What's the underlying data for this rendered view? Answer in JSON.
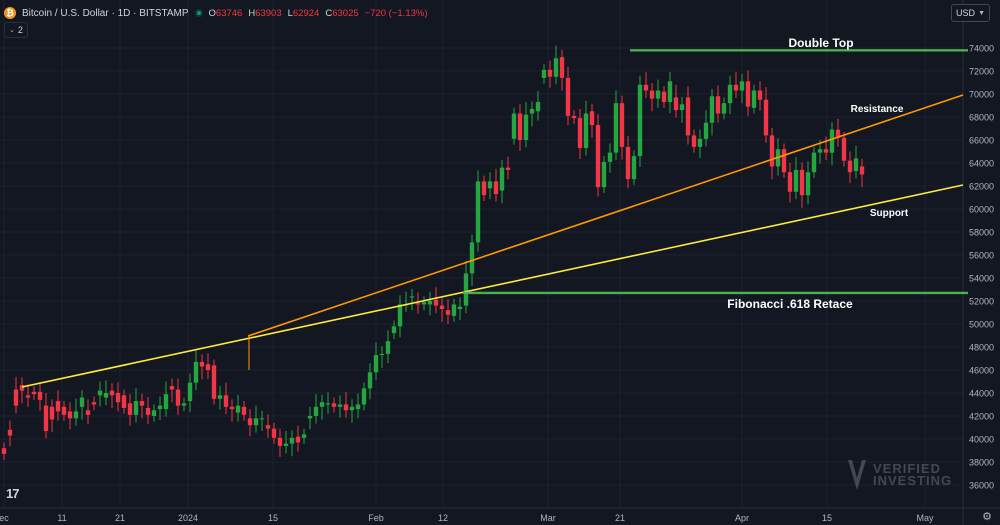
{
  "header": {
    "title": "Bitcoin / U.S. Dollar · 1D · BITSTAMP",
    "ohlc": [
      {
        "label": "O",
        "value": "63746"
      },
      {
        "label": "H",
        "value": "63903"
      },
      {
        "label": "L",
        "value": "62924"
      },
      {
        "label": "C",
        "value": "63025"
      }
    ],
    "change": "−720 (−1.13%)"
  },
  "indicators": {
    "count": "2"
  },
  "currency": {
    "label": "USD"
  },
  "watermark": {
    "line1": "VERIFIED",
    "line2": "INVESTING"
  },
  "colors": {
    "background": "#131722",
    "up": "#26a641",
    "down": "#f23645",
    "fib": "#4caf50",
    "support": "#ffeb3b",
    "resistance": "#ff9800",
    "grid": "#1e222d"
  },
  "chart_data": {
    "type": "candlestick",
    "ylim": [
      35000,
      75500
    ],
    "y_ticks": [
      36000,
      38000,
      40000,
      42000,
      44000,
      46000,
      48000,
      50000,
      52000,
      54000,
      56000,
      58000,
      60000,
      62000,
      64000,
      66000,
      68000,
      70000,
      72000,
      74000
    ],
    "x_labels": [
      "ec",
      "11",
      "21",
      "2024",
      "15",
      "Feb",
      "12",
      "Mar",
      "21",
      "Apr",
      "15",
      "May"
    ],
    "candles": [
      [
        39200,
        38700
      ],
      [
        40800,
        40300
      ],
      [
        44300,
        42900
      ],
      [
        44700,
        44200
      ],
      [
        43800,
        43600
      ],
      [
        44100,
        43900
      ],
      [
        44100,
        43400
      ],
      [
        42900,
        40700
      ],
      [
        42800,
        41700
      ],
      [
        43300,
        42400
      ],
      [
        42800,
        42100
      ],
      [
        42400,
        41800
      ],
      [
        41800,
        42400
      ],
      [
        42800,
        43600
      ],
      [
        42500,
        42100
      ],
      [
        43200,
        43000
      ],
      [
        43800,
        44200
      ],
      [
        43600,
        44000
      ],
      [
        44200,
        43800
      ],
      [
        44000,
        43200
      ],
      [
        43800,
        42700
      ],
      [
        43100,
        42100
      ],
      [
        42100,
        43300
      ],
      [
        43300,
        42900
      ],
      [
        42700,
        42100
      ],
      [
        42000,
        42500
      ],
      [
        42600,
        42900
      ],
      [
        42600,
        43900
      ],
      [
        44600,
        44300
      ],
      [
        44300,
        42900
      ],
      [
        42900,
        43100
      ],
      [
        43300,
        44900
      ],
      [
        44900,
        46700
      ],
      [
        46700,
        46300
      ],
      [
        46500,
        46000
      ],
      [
        46400,
        43500
      ],
      [
        43500,
        43800
      ],
      [
        43800,
        42800
      ],
      [
        42800,
        42600
      ],
      [
        42300,
        42900
      ],
      [
        42800,
        42100
      ],
      [
        41800,
        41200
      ],
      [
        41200,
        41800
      ],
      [
        41800,
        41800
      ],
      [
        41200,
        40900
      ],
      [
        40900,
        40100
      ],
      [
        40100,
        39400
      ],
      [
        39400,
        39600
      ],
      [
        39600,
        40100
      ],
      [
        40200,
        39700
      ],
      [
        40100,
        40400
      ],
      [
        41800,
        42000
      ],
      [
        42000,
        42800
      ],
      [
        42800,
        43200
      ],
      [
        43000,
        43100
      ],
      [
        43100,
        42800
      ],
      [
        42800,
        43000
      ],
      [
        43000,
        42500
      ],
      [
        42500,
        42800
      ],
      [
        42600,
        43000
      ],
      [
        43000,
        44400
      ],
      [
        44400,
        45800
      ],
      [
        45800,
        47300
      ],
      [
        47300,
        47400
      ],
      [
        47400,
        48500
      ],
      [
        49200,
        49800
      ],
      [
        49800,
        51700
      ],
      [
        51700,
        51700
      ],
      [
        52300,
        52400
      ],
      [
        51800,
        51700
      ],
      [
        51700,
        51900
      ],
      [
        51700,
        52000
      ],
      [
        52100,
        51600
      ],
      [
        51600,
        51300
      ],
      [
        51200,
        50800
      ],
      [
        50700,
        51700
      ],
      [
        51300,
        51500
      ],
      [
        51600,
        54400
      ],
      [
        54400,
        57100
      ],
      [
        57100,
        62400
      ],
      [
        62400,
        61200
      ],
      [
        61800,
        62400
      ],
      [
        62400,
        61300
      ],
      [
        61600,
        63600
      ],
      [
        63600,
        63400
      ],
      [
        66100,
        68300
      ],
      [
        68300,
        66000
      ],
      [
        66000,
        68200
      ],
      [
        68300,
        68700
      ],
      [
        68500,
        69300
      ],
      [
        71400,
        72100
      ],
      [
        72100,
        71500
      ],
      [
        71500,
        73100
      ],
      [
        73200,
        71400
      ],
      [
        71400,
        68100
      ],
      [
        68100,
        67900
      ],
      [
        67900,
        65300
      ],
      [
        65300,
        68300
      ],
      [
        68500,
        67300
      ],
      [
        67300,
        61900
      ],
      [
        61900,
        64100
      ],
      [
        64100,
        64900
      ],
      [
        64900,
        69200
      ],
      [
        69200,
        65400
      ],
      [
        65400,
        62600
      ],
      [
        62600,
        64600
      ],
      [
        64600,
        70800
      ],
      [
        70800,
        70300
      ],
      [
        70300,
        69600
      ],
      [
        69600,
        70300
      ],
      [
        70200,
        69300
      ],
      [
        69300,
        71100
      ],
      [
        69700,
        68600
      ],
      [
        68600,
        69100
      ],
      [
        69700,
        66400
      ],
      [
        66400,
        65400
      ],
      [
        65400,
        66100
      ],
      [
        66100,
        67500
      ],
      [
        67500,
        69800
      ],
      [
        69800,
        68300
      ],
      [
        68300,
        69200
      ],
      [
        69200,
        70800
      ],
      [
        70800,
        70300
      ],
      [
        70300,
        71100
      ],
      [
        71100,
        68900
      ],
      [
        68800,
        70300
      ],
      [
        70300,
        69500
      ],
      [
        69500,
        66400
      ],
      [
        66400,
        63700
      ],
      [
        63700,
        65200
      ],
      [
        65200,
        63200
      ],
      [
        63200,
        61500
      ],
      [
        61500,
        63400
      ],
      [
        63400,
        61200
      ],
      [
        61200,
        63200
      ],
      [
        63200,
        64900
      ],
      [
        64900,
        65200
      ],
      [
        65200,
        64900
      ],
      [
        64900,
        66900
      ],
      [
        66900,
        66200
      ],
      [
        66200,
        64200
      ],
      [
        64200,
        63200
      ],
      [
        63300,
        64400
      ],
      [
        63700,
        63000
      ]
    ],
    "annotations": [
      {
        "name": "fibonacci-618-line",
        "label": "Fibonacci .618 Retace",
        "value": 52700
      },
      {
        "name": "double-top-line",
        "label": "Double Top",
        "value": 73800
      },
      {
        "name": "resistance-line",
        "label": "Resistance"
      },
      {
        "name": "support-line",
        "label": "Support"
      }
    ]
  }
}
